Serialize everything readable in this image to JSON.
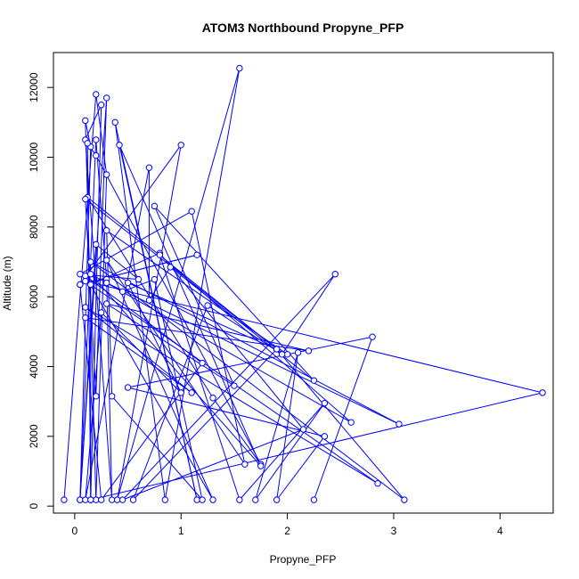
{
  "chart_data": {
    "type": "line",
    "title": "ATOM3 Northbound Propyne_PFP",
    "xlabel": "Propyne_PFP",
    "ylabel": "Altitude (m)",
    "xlim": [
      -0.2,
      4.5
    ],
    "ylim": [
      -200,
      13000
    ],
    "xticks": [
      0,
      1,
      2,
      3,
      4
    ],
    "yticks": [
      0,
      2000,
      4000,
      6000,
      8000,
      10000,
      12000
    ],
    "grid": false,
    "legend": "none",
    "color": "#0000ff",
    "marker": "open-circle",
    "series": [
      {
        "points": [
          [
            -0.1,
            180
          ],
          [
            0.2,
            11800
          ],
          [
            0.3,
            9500
          ],
          [
            0.2,
            180
          ],
          [
            0.1,
            11050
          ],
          [
            0.15,
            10300
          ],
          [
            0.05,
            180
          ],
          [
            0.2,
            10500
          ],
          [
            0.3,
            6500
          ],
          [
            0.35,
            180
          ],
          [
            0.1,
            10500
          ],
          [
            0.25,
            11500
          ],
          [
            0.15,
            180
          ],
          [
            0.12,
            10400
          ],
          [
            0.2,
            10050
          ],
          [
            1.75,
            1200
          ],
          [
            1.3,
            3100
          ],
          [
            0.12,
            8850
          ],
          [
            1.9,
            4500
          ],
          [
            0.1,
            8800
          ],
          [
            0.2,
            3150
          ],
          [
            0.3,
            11700
          ],
          [
            0.05,
            180
          ],
          [
            0.2,
            7500
          ],
          [
            0.6,
            6500
          ],
          [
            0.05,
            6650
          ],
          [
            1.1,
            8450
          ],
          [
            1.6,
            1200
          ],
          [
            0.3,
            7050
          ],
          [
            1.3,
            180
          ],
          [
            0.1,
            6600
          ],
          [
            1.2,
            4100
          ],
          [
            0.25,
            180
          ],
          [
            0.05,
            6350
          ],
          [
            1.15,
            7200
          ],
          [
            0.05,
            6350
          ],
          [
            1.0,
            10350
          ],
          [
            0.4,
            180
          ],
          [
            1.55,
            12550
          ],
          [
            0.85,
            180
          ],
          [
            0.38,
            11000
          ],
          [
            1.15,
            180
          ],
          [
            0.42,
            10350
          ],
          [
            1.75,
            1150
          ],
          [
            0.15,
            6650
          ],
          [
            0.45,
            6150
          ],
          [
            0.75,
            6500
          ],
          [
            1.2,
            180
          ],
          [
            0.35,
            3150
          ],
          [
            0.3,
            7900
          ],
          [
            2.0,
            4350
          ],
          [
            0.5,
            6400
          ],
          [
            1.0,
            3250
          ],
          [
            0.25,
            5550
          ],
          [
            0.1,
            180
          ],
          [
            0.7,
            9700
          ],
          [
            0.7,
            5900
          ],
          [
            0.9,
            6850
          ],
          [
            2.25,
            3600
          ],
          [
            0.75,
            8600
          ],
          [
            1.5,
            3450
          ],
          [
            0.3,
            5800
          ],
          [
            2.2,
            4450
          ],
          [
            0.1,
            5400
          ],
          [
            1.1,
            3250
          ],
          [
            0.1,
            5700
          ],
          [
            2.85,
            650
          ],
          [
            0.1,
            6450
          ],
          [
            4.4,
            3250
          ],
          [
            0.15,
            180
          ],
          [
            0.15,
            6350
          ],
          [
            0.8,
            7250
          ],
          [
            2.15,
            2200
          ],
          [
            0.45,
            180
          ],
          [
            2.45,
            6650
          ],
          [
            1.95,
            4350
          ],
          [
            1.25,
            5750
          ],
          [
            0.55,
            180
          ],
          [
            1.9,
            4500
          ],
          [
            3.1,
            180
          ],
          [
            0.15,
            7000
          ],
          [
            3.05,
            2350
          ],
          [
            0.3,
            6400
          ],
          [
            2.6,
            2400
          ],
          [
            0.8,
            7200
          ],
          [
            1.55,
            180
          ],
          [
            2.35,
            2950
          ],
          [
            1.7,
            180
          ],
          [
            2.1,
            4400
          ],
          [
            1.9,
            180
          ],
          [
            2.35,
            2000
          ],
          [
            0.5,
            3400
          ],
          [
            2.8,
            4850
          ],
          [
            2.25,
            180
          ]
        ]
      }
    ]
  }
}
